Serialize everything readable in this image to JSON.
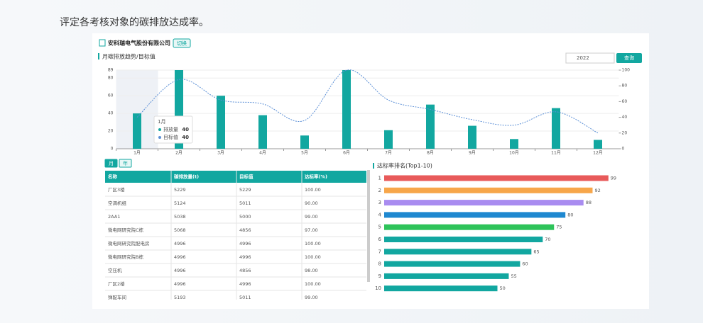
{
  "heading": "评定各考核对象的碳排放达成率。",
  "company": "安科瑞电气股份有限公司",
  "switch_button": "切换",
  "date_filter": "2022",
  "query_button": "查询",
  "trend_chart": {
    "type": "combo",
    "title": "月碳排放趋势/目标值",
    "categories": [
      "1月",
      "2月",
      "3月",
      "4月",
      "5月",
      "6月",
      "7月",
      "8月",
      "9月",
      "10月",
      "11月",
      "12月"
    ],
    "series": [
      {
        "name": "排放量",
        "type": "bar",
        "color": "#12a7a0",
        "values": [
          40,
          89,
          60,
          38,
          15,
          89,
          21,
          50,
          26,
          11,
          46,
          10
        ]
      },
      {
        "name": "目标值",
        "type": "line",
        "axis": "y2",
        "color": "#5b8fd6",
        "values": [
          40,
          88,
          62,
          57,
          36,
          100,
          62,
          50,
          37,
          30,
          47,
          20
        ]
      }
    ],
    "ylim": [
      0,
      89
    ],
    "yticks": [
      0,
      20,
      40,
      60,
      80,
      89
    ],
    "y2lim": [
      0,
      100
    ],
    "y2ticks": [
      0,
      20,
      40,
      60,
      80,
      100
    ]
  },
  "period_tabs": [
    "月",
    "年"
  ],
  "table": {
    "headers": [
      "名称",
      "碳排放量(t)",
      "目标值",
      "达标率(%)"
    ],
    "rows": [
      [
        "厂区3楼",
        "5229",
        "5229",
        "100.00"
      ],
      [
        "空调机组",
        "5124",
        "5011",
        "90.00"
      ],
      [
        "2AA1",
        "5038",
        "5000",
        "99.00"
      ],
      [
        "微电网研究院C栋",
        "5068",
        "4856",
        "97.00"
      ],
      [
        "微电网研究院配电房",
        "4996",
        "4996",
        "100.00"
      ],
      [
        "微电网研究院B栋",
        "4996",
        "4996",
        "100.00"
      ],
      [
        "空压机",
        "4996",
        "4856",
        "98.00"
      ],
      [
        "厂区2楼",
        "4996",
        "4996",
        "100.00"
      ],
      [
        "弹配车间",
        "5193",
        "5011",
        "99.00"
      ]
    ]
  },
  "rank_chart": {
    "type": "barh",
    "title": "达标率排名(Top1-10)",
    "categories": [
      "1",
      "2",
      "3",
      "4",
      "5",
      "6",
      "7",
      "8",
      "9",
      "10"
    ],
    "values": [
      99,
      92,
      88,
      80,
      75,
      70,
      65,
      60,
      55,
      50
    ],
    "colors": [
      "#e85a5a",
      "#f7a64a",
      "#a98cf0",
      "#1e88d0",
      "#2ec35a",
      "#12a7a0",
      "#12a7a0",
      "#12a7a0",
      "#12a7a0",
      "#12a7a0"
    ],
    "xlim": [
      0,
      100
    ]
  }
}
